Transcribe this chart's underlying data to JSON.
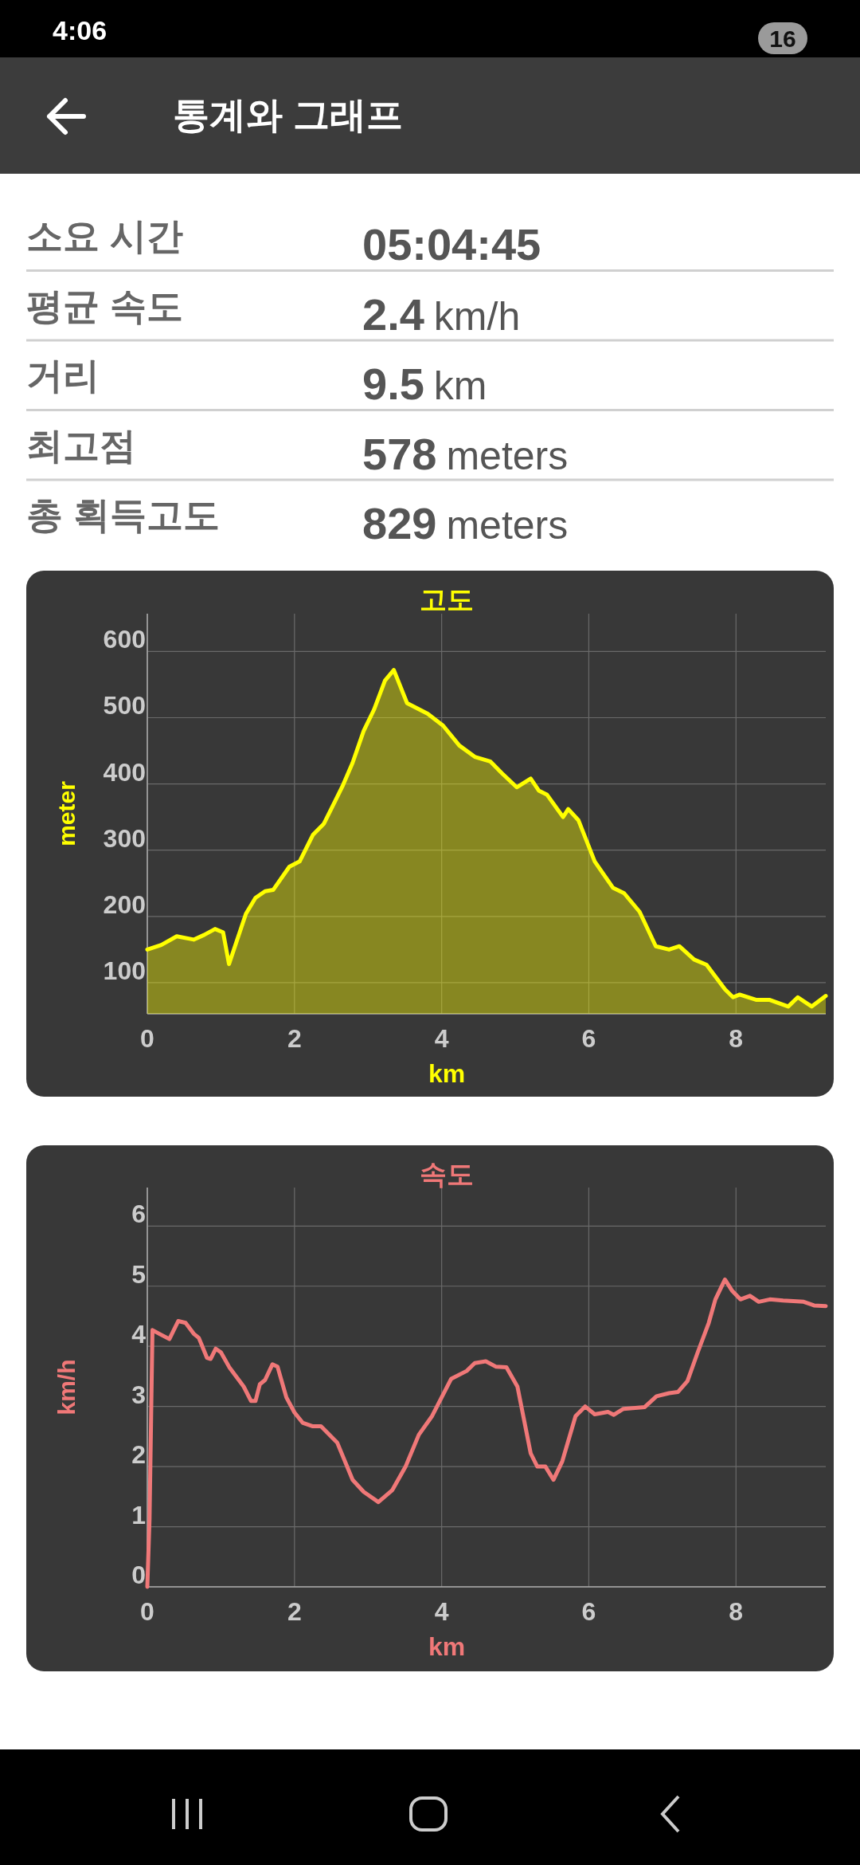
{
  "chart_data": [
    {
      "type": "other",
      "title": "통계와 그래프",
      "categories": [
        "소요 시간",
        "평균 속도",
        "거리",
        "최고점",
        "총 획득고도"
      ],
      "value_labels": [
        "05:04:45",
        "2.4 km/h",
        "9.5 km",
        "578 meters",
        "829 meters"
      ],
      "annotations": [
        "4:06",
        "16"
      ]
    },
    {
      "type": "area",
      "title": "고도",
      "xlabel": "km",
      "ylabel": "meter",
      "xlim": [
        0,
        9.22
      ],
      "ylim": [
        53,
        657
      ],
      "xticks": [
        0,
        2,
        4,
        6,
        8
      ],
      "yticks": [
        100,
        200,
        300,
        400,
        500,
        600
      ],
      "grid": true,
      "series": [
        {
          "color": "#ffff00",
          "x": [
            0,
            0.19,
            0.4,
            0.63,
            0.77,
            0.92,
            1.03,
            1.11,
            1.34,
            1.47,
            1.6,
            1.71,
            1.93,
            2.07,
            2.25,
            2.4,
            2.65,
            2.79,
            2.94,
            3.08,
            3.23,
            3.35,
            3.53,
            3.81,
            4.02,
            4.24,
            4.45,
            4.66,
            4.82,
            5.02,
            5.21,
            5.32,
            5.43,
            5.65,
            5.72,
            5.86,
            6.08,
            6.33,
            6.48,
            6.69,
            6.91,
            7.09,
            7.23,
            7.43,
            7.6,
            7.85,
            7.96,
            8.05,
            8.28,
            8.46,
            8.71,
            8.84,
            9.03,
            9.22
          ],
          "values": [
            150,
            157,
            170,
            165,
            172,
            181,
            176,
            128,
            204,
            228,
            238,
            240,
            275,
            283,
            323,
            340,
            396,
            432,
            480,
            512,
            556,
            572,
            522,
            506,
            488,
            458,
            441,
            434,
            416,
            395,
            408,
            390,
            384,
            350,
            362,
            345,
            283,
            243,
            235,
            207,
            155,
            150,
            155,
            135,
            127,
            90,
            78,
            82,
            74,
            74,
            64,
            78,
            64,
            80
          ]
        }
      ]
    },
    {
      "type": "line",
      "title": "속도",
      "xlabel": "km",
      "ylabel": "km/h",
      "xlim": [
        0,
        9.22
      ],
      "ylim": [
        0,
        6.64
      ],
      "xticks": [
        0,
        2,
        4,
        6,
        8
      ],
      "yticks": [
        0,
        1,
        2,
        3,
        4,
        5,
        6
      ],
      "grid": true,
      "series": [
        {
          "color": "#f07878",
          "x": [
            0,
            0.03,
            0.07,
            0.16,
            0.3,
            0.42,
            0.52,
            0.63,
            0.7,
            0.81,
            0.86,
            0.93,
            1,
            1.12,
            1.31,
            1.41,
            1.47,
            1.53,
            1.6,
            1.7,
            1.77,
            1.89,
            2,
            2.11,
            2.25,
            2.36,
            2.58,
            2.79,
            2.94,
            3.14,
            3.33,
            3.51,
            3.69,
            3.87,
            4.13,
            4.34,
            4.45,
            4.6,
            4.74,
            4.88,
            5.03,
            5.21,
            5.3,
            5.41,
            5.52,
            5.64,
            5.82,
            5.95,
            6.08,
            6.26,
            6.34,
            6.47,
            6.76,
            6.92,
            7.09,
            7.21,
            7.34,
            7.48,
            7.63,
            7.72,
            7.85,
            7.95,
            8.06,
            8.19,
            8.31,
            8.46,
            8.64,
            8.92,
            9.06,
            9.22
          ],
          "values": [
            0,
            1.12,
            4.27,
            4.21,
            4.12,
            4.42,
            4.39,
            4.21,
            4.14,
            3.81,
            3.79,
            3.96,
            3.9,
            3.64,
            3.33,
            3.09,
            3.09,
            3.37,
            3.44,
            3.7,
            3.66,
            3.15,
            2.9,
            2.73,
            2.67,
            2.67,
            2.4,
            1.78,
            1.58,
            1.41,
            1.61,
            2,
            2.53,
            2.84,
            3.46,
            3.59,
            3.72,
            3.75,
            3.66,
            3.65,
            3.33,
            2.22,
            2,
            2,
            1.78,
            2.09,
            2.84,
            3,
            2.87,
            2.91,
            2.86,
            2.96,
            2.99,
            3.17,
            3.22,
            3.24,
            3.42,
            3.9,
            4.39,
            4.78,
            5.11,
            4.92,
            4.78,
            4.84,
            4.74,
            4.78,
            4.76,
            4.74,
            4.68,
            4.67
          ]
        }
      ]
    }
  ]
}
